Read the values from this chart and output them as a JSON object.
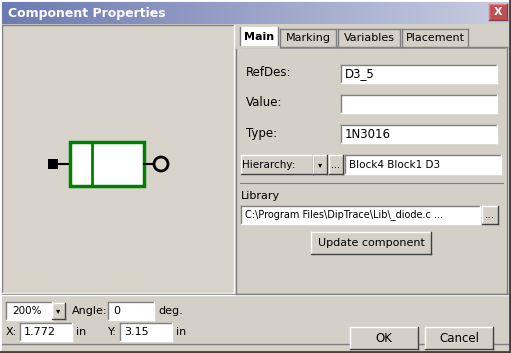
{
  "title": "Component Properties",
  "bg_color": "#d4d0c8",
  "white": "#ffffff",
  "tabs": [
    "Main",
    "Marking",
    "Variables",
    "Placement"
  ],
  "fields": [
    {
      "label": "RefDes:",
      "value": "D3_5"
    },
    {
      "label": "Value:",
      "value": ""
    },
    {
      "label": "Type:",
      "value": "1N3016"
    }
  ],
  "hierarchy_label": "Hierarchy:",
  "hierarchy_value": "Block4 Block1 D³",
  "hierarchy_display": "Block4 Block1 D3",
  "library_label": "Library",
  "library_value": "C:\\Program Files\\DipTrace\\Lib\\_diode.c ...",
  "update_btn": "Update component",
  "zoom_value": "200%",
  "angle_label": "Angle:",
  "angle_value": "0",
  "deg_label": "deg.",
  "x_label": "X:",
  "x_value": "1.772",
  "y_label": "Y:",
  "y_value": "3.15",
  "in_label": "in",
  "ok_btn": "OK",
  "cancel_btn": "Cancel",
  "green_component": "#008000",
  "title_bar_gradient_left": "#6c7ab0",
  "title_bar_gradient_right": "#c8cce0",
  "close_btn_color": "#c05050"
}
